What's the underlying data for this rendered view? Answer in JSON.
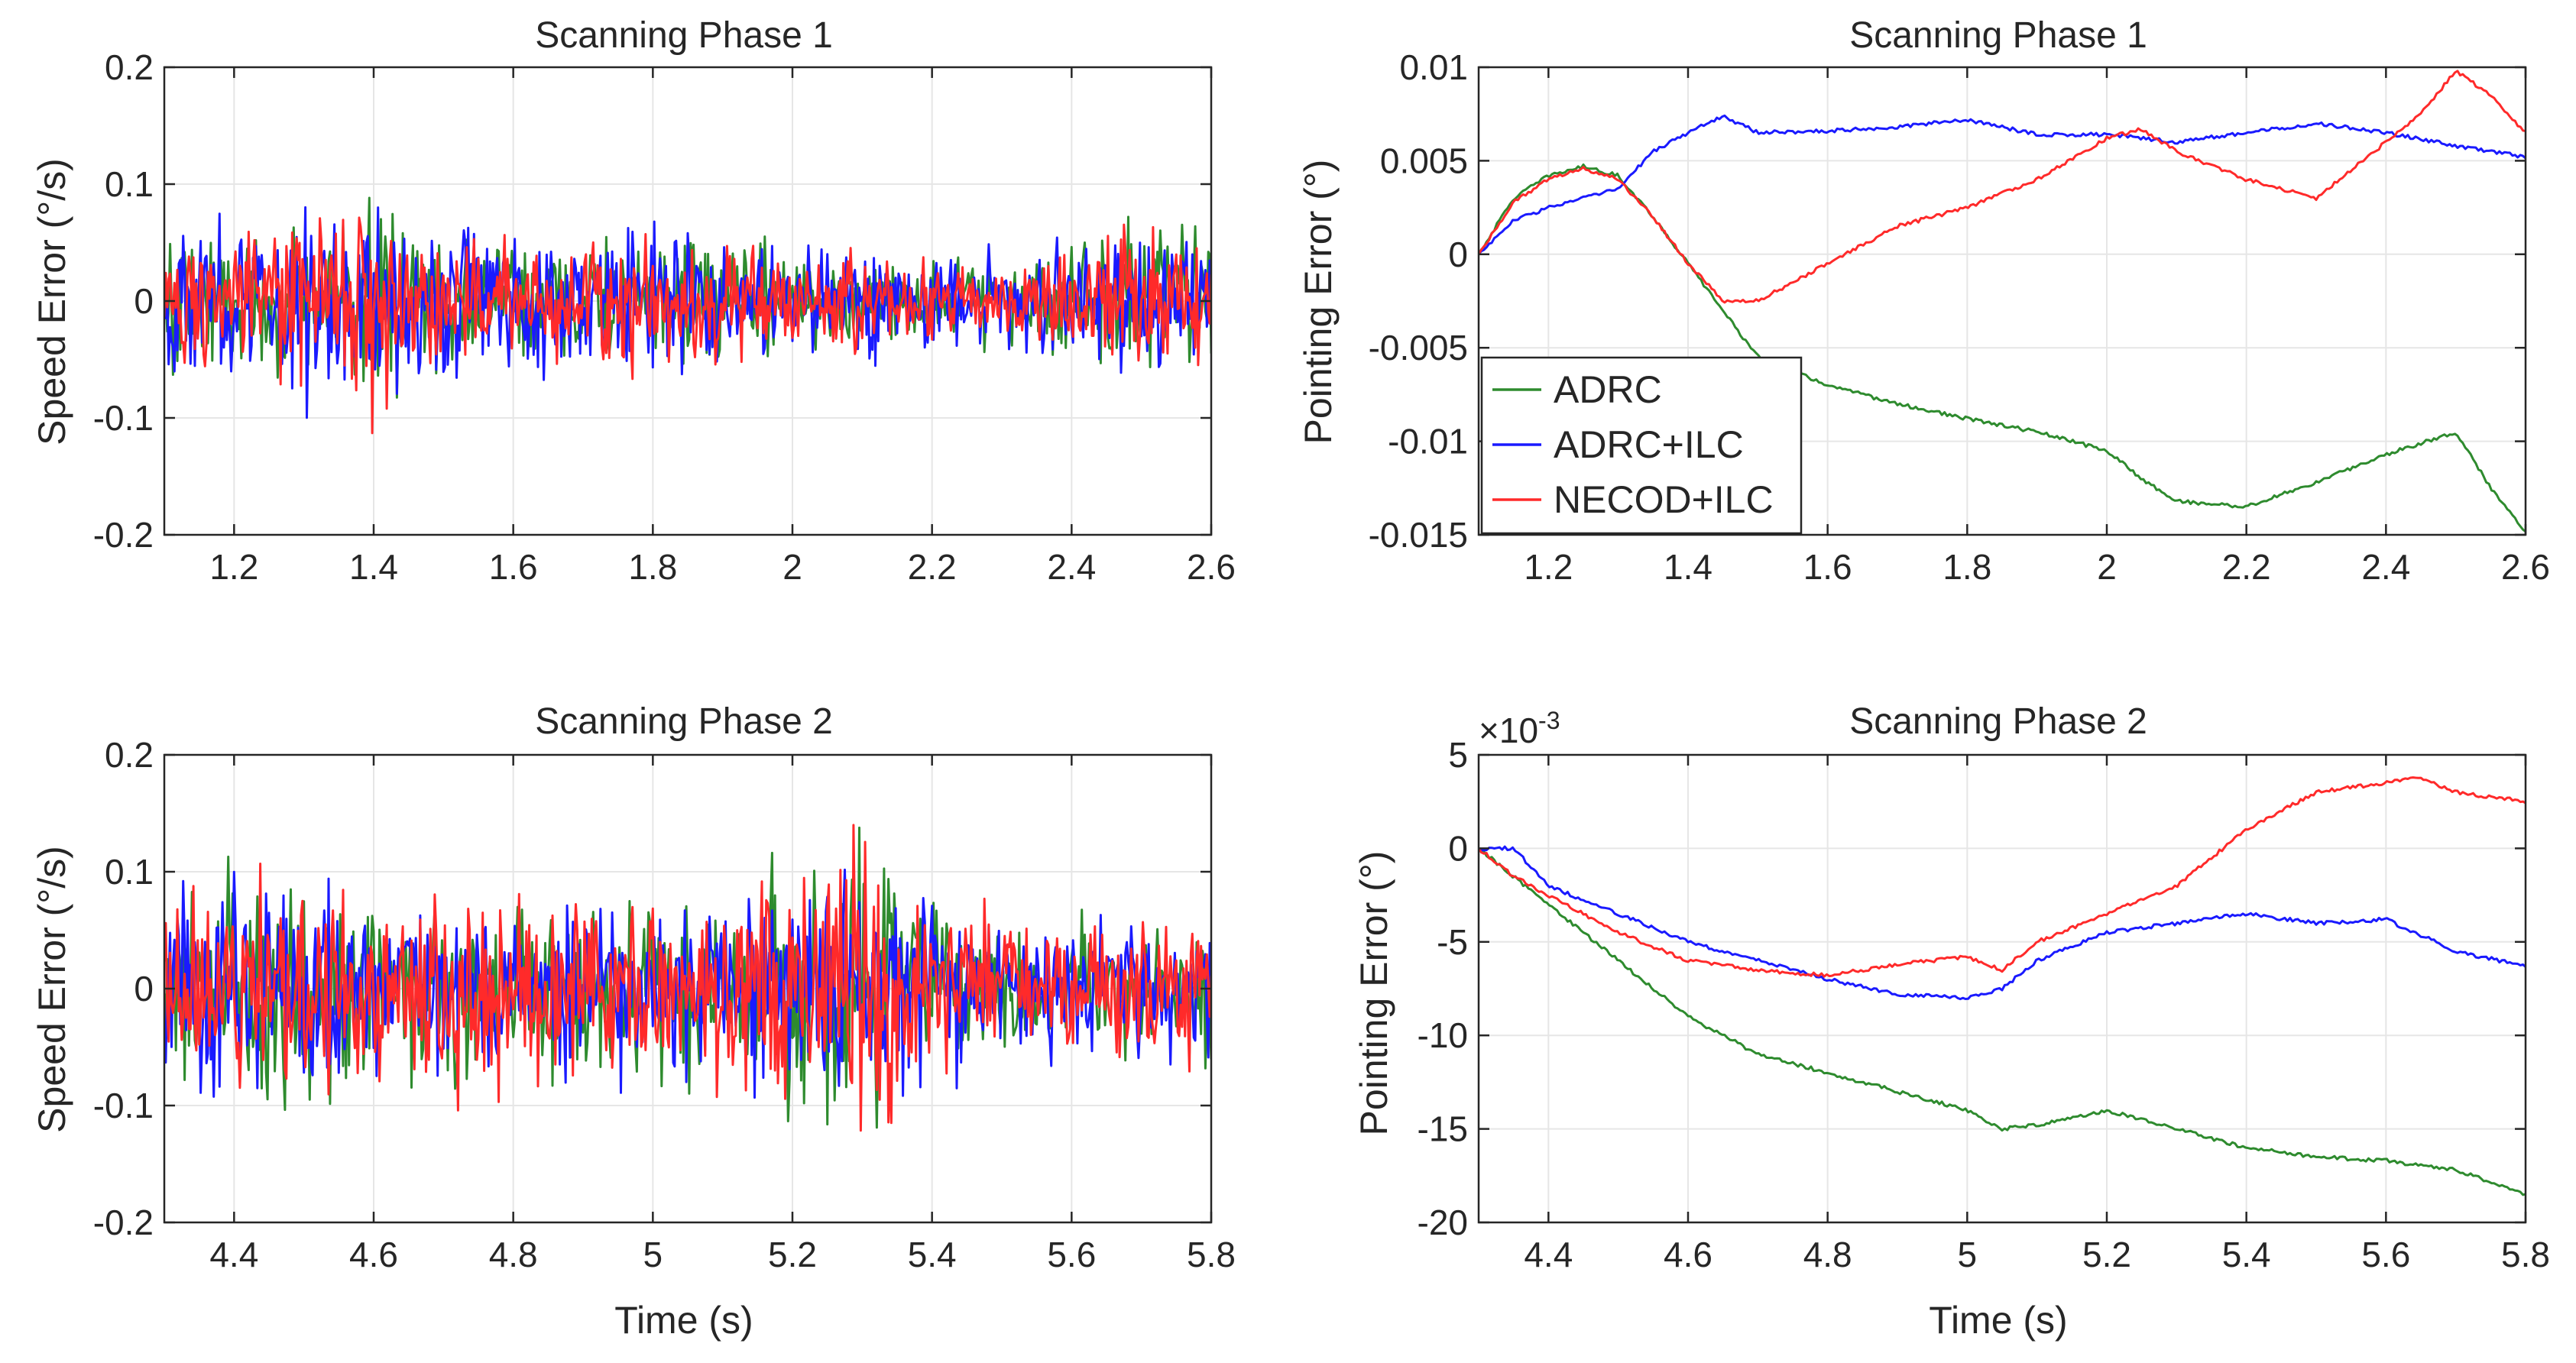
{
  "chart_data": [
    {
      "type": "line",
      "title": "Scanning Phase 1",
      "xlabel": "",
      "ylabel": "Speed Error (°/s)",
      "xlim": [
        1.1,
        2.6
      ],
      "ylim": [
        -0.2,
        0.2
      ],
      "xticks": [
        "1.2",
        "1.4",
        "1.6",
        "1.8",
        "2",
        "2.2",
        "2.4",
        "2.6"
      ],
      "yticks": [
        "-0.2",
        "-0.1",
        "0",
        "0.1",
        "0.2"
      ],
      "grid": true,
      "noise": true,
      "series": [
        {
          "name": "ADRC",
          "color": "#2e8b2e",
          "x": [
            1.1,
            1.2,
            1.3,
            1.4,
            1.5,
            1.6,
            1.7,
            1.8,
            1.9,
            2.0,
            2.1,
            2.2,
            2.3,
            2.4,
            2.5,
            2.6
          ],
          "amplitude": [
            0.09,
            0.08,
            0.08,
            0.12,
            0.08,
            0.07,
            0.07,
            0.07,
            0.07,
            0.06,
            0.06,
            0.05,
            0.05,
            0.06,
            0.1,
            0.09
          ]
        },
        {
          "name": "ADRC+ILC",
          "color": "#1a1aff",
          "x": [
            1.1,
            1.2,
            1.3,
            1.4,
            1.5,
            1.6,
            1.7,
            1.8,
            1.9,
            2.0,
            2.1,
            2.2,
            2.3,
            2.4,
            2.5,
            2.6
          ],
          "amplitude": [
            0.09,
            0.1,
            0.13,
            0.11,
            0.09,
            0.08,
            0.08,
            0.09,
            0.08,
            0.07,
            0.07,
            0.06,
            0.06,
            0.06,
            0.09,
            0.08
          ]
        },
        {
          "name": "NECOD+ILC",
          "color": "#ff2a2a",
          "x": [
            1.1,
            1.2,
            1.3,
            1.4,
            1.5,
            1.6,
            1.7,
            1.8,
            1.9,
            2.0,
            2.1,
            2.2,
            2.3,
            2.4,
            2.5,
            2.6
          ],
          "amplitude": [
            0.08,
            0.08,
            0.09,
            0.12,
            0.08,
            0.07,
            0.07,
            0.08,
            0.07,
            0.06,
            0.06,
            0.05,
            0.05,
            0.06,
            0.1,
            0.08
          ]
        }
      ]
    },
    {
      "type": "line",
      "title": "Scanning Phase 1",
      "xlabel": "",
      "ylabel": "Pointing Error (°)",
      "xlim": [
        1.1,
        2.6
      ],
      "ylim": [
        -0.015,
        0.01
      ],
      "xticks": [
        "1.2",
        "1.4",
        "1.6",
        "1.8",
        "2",
        "2.2",
        "2.4",
        "2.6"
      ],
      "yticks": [
        "-0.015",
        "-0.01",
        "-0.005",
        "0",
        "0.005",
        "0.01"
      ],
      "grid": true,
      "legend": {
        "position": "bottom-left",
        "entries": [
          "ADRC",
          "ADRC+ILC",
          "NECOD+ILC"
        ]
      },
      "series": [
        {
          "name": "ADRC",
          "color": "#2e8b2e",
          "x": [
            1.1,
            1.15,
            1.2,
            1.25,
            1.3,
            1.35,
            1.4,
            1.45,
            1.5,
            1.6,
            1.7,
            1.8,
            1.9,
            2.0,
            2.05,
            2.1,
            2.2,
            2.3,
            2.4,
            2.5,
            2.55,
            2.6
          ],
          "y": [
            0.0,
            0.003,
            0.0042,
            0.0047,
            0.0042,
            0.002,
            -0.0005,
            -0.003,
            -0.0055,
            -0.007,
            -0.008,
            -0.0088,
            -0.0095,
            -0.0105,
            -0.012,
            -0.0132,
            -0.0135,
            -0.0122,
            -0.0107,
            -0.0095,
            -0.0125,
            -0.0148
          ]
        },
        {
          "name": "ADRC+ILC",
          "color": "#1a1aff",
          "x": [
            1.1,
            1.15,
            1.2,
            1.25,
            1.3,
            1.35,
            1.4,
            1.45,
            1.5,
            1.6,
            1.7,
            1.8,
            1.9,
            2.0,
            2.1,
            2.2,
            2.3,
            2.4,
            2.5,
            2.6
          ],
          "y": [
            0.0,
            0.0018,
            0.0025,
            0.003,
            0.0035,
            0.0055,
            0.0065,
            0.0074,
            0.0065,
            0.0066,
            0.0068,
            0.0072,
            0.0064,
            0.0064,
            0.006,
            0.0065,
            0.007,
            0.0065,
            0.0058,
            0.0052
          ]
        },
        {
          "name": "NECOD+ILC",
          "color": "#ff2a2a",
          "x": [
            1.1,
            1.15,
            1.2,
            1.25,
            1.3,
            1.35,
            1.4,
            1.45,
            1.5,
            1.6,
            1.7,
            1.8,
            1.9,
            2.0,
            2.05,
            2.1,
            2.2,
            2.3,
            2.4,
            2.45,
            2.5,
            2.55,
            2.6
          ],
          "y": [
            0.0,
            0.0028,
            0.004,
            0.0046,
            0.004,
            0.002,
            -0.0005,
            -0.0025,
            -0.0025,
            -0.0005,
            0.0015,
            0.0025,
            0.004,
            0.0062,
            0.0067,
            0.0055,
            0.004,
            0.003,
            0.006,
            0.0075,
            0.0098,
            0.0085,
            0.0065
          ]
        }
      ]
    },
    {
      "type": "line",
      "title": "Scanning Phase 2",
      "xlabel": "Time (s)",
      "ylabel": "Speed Error (°/s)",
      "xlim": [
        4.3,
        5.8
      ],
      "ylim": [
        -0.2,
        0.2
      ],
      "xticks": [
        "4.4",
        "4.6",
        "4.8",
        "5",
        "5.2",
        "5.4",
        "5.6",
        "5.8"
      ],
      "yticks": [
        "-0.2",
        "-0.1",
        "0",
        "0.1",
        "0.2"
      ],
      "grid": true,
      "noise": true,
      "series": [
        {
          "name": "ADRC",
          "color": "#2e8b2e",
          "x": [
            4.3,
            4.4,
            4.5,
            4.6,
            4.7,
            4.8,
            4.9,
            5.0,
            5.1,
            5.2,
            5.3,
            5.4,
            5.5,
            5.6,
            5.7,
            5.8
          ],
          "amplitude": [
            0.1,
            0.12,
            0.14,
            0.1,
            0.1,
            0.11,
            0.11,
            0.1,
            0.1,
            0.14,
            0.16,
            0.11,
            0.08,
            0.07,
            0.08,
            0.09
          ]
        },
        {
          "name": "ADRC+ILC",
          "color": "#1a1aff",
          "x": [
            4.3,
            4.4,
            4.5,
            4.6,
            4.7,
            4.8,
            4.9,
            5.0,
            5.1,
            5.2,
            5.3,
            5.4,
            5.5,
            5.6,
            5.7,
            5.8
          ],
          "amplitude": [
            0.11,
            0.13,
            0.13,
            0.11,
            0.1,
            0.1,
            0.11,
            0.1,
            0.12,
            0.18,
            0.14,
            0.11,
            0.08,
            0.07,
            0.09,
            0.09
          ]
        },
        {
          "name": "NECOD+ILC",
          "color": "#ff2a2a",
          "x": [
            4.3,
            4.4,
            4.5,
            4.6,
            4.7,
            4.8,
            4.9,
            5.0,
            5.1,
            5.2,
            5.3,
            5.4,
            5.5,
            5.6,
            5.7,
            5.8
          ],
          "amplitude": [
            0.1,
            0.12,
            0.12,
            0.1,
            0.12,
            0.12,
            0.11,
            0.1,
            0.11,
            0.15,
            0.18,
            0.12,
            0.08,
            0.07,
            0.09,
            0.1
          ]
        }
      ]
    },
    {
      "type": "line",
      "title": "Scanning Phase 2",
      "xlabel": "Time (s)",
      "ylabel": "Pointing Error (°)",
      "exponent_label": "×10",
      "exponent_power": "-3",
      "xlim": [
        4.3,
        5.8
      ],
      "ylim": [
        -20,
        5
      ],
      "xticks": [
        "4.4",
        "4.6",
        "4.8",
        "5",
        "5.2",
        "5.4",
        "5.6",
        "5.8"
      ],
      "yticks": [
        "-20",
        "-15",
        "-10",
        "-5",
        "0",
        "5"
      ],
      "grid": true,
      "series": [
        {
          "name": "ADRC",
          "color": "#2e8b2e",
          "x": [
            4.3,
            4.35,
            4.4,
            4.5,
            4.6,
            4.7,
            4.8,
            4.9,
            5.0,
            5.05,
            5.1,
            5.2,
            5.3,
            5.4,
            5.5,
            5.6,
            5.7,
            5.8
          ],
          "y": [
            0,
            -1.5,
            -3,
            -6,
            -9,
            -11,
            -12,
            -13,
            -14,
            -15,
            -14.8,
            -14,
            -15,
            -16,
            -16.5,
            -16.7,
            -17.2,
            -18.5
          ]
        },
        {
          "name": "ADRC+ILC",
          "color": "#1a1aff",
          "x": [
            4.3,
            4.35,
            4.4,
            4.5,
            4.6,
            4.7,
            4.8,
            4.9,
            5.0,
            5.05,
            5.1,
            5.2,
            5.3,
            5.4,
            5.5,
            5.6,
            5.7,
            5.8
          ],
          "y": [
            0,
            0,
            -2,
            -3.5,
            -5,
            -6,
            -7,
            -7.8,
            -8,
            -7.5,
            -6,
            -4.5,
            -4,
            -3.5,
            -4,
            -3.8,
            -5.5,
            -6.3
          ]
        },
        {
          "name": "NECOD+ILC",
          "color": "#ff2a2a",
          "x": [
            4.3,
            4.35,
            4.4,
            4.5,
            4.6,
            4.7,
            4.8,
            4.9,
            5.0,
            5.05,
            5.1,
            5.2,
            5.3,
            5.4,
            5.5,
            5.6,
            5.65,
            5.7,
            5.8
          ],
          "y": [
            0,
            -1.5,
            -2.5,
            -4.5,
            -6,
            -6.5,
            -6.8,
            -6.2,
            -5.8,
            -6.5,
            -5,
            -3.5,
            -2,
            1,
            3,
            3.5,
            3.8,
            3,
            2.5
          ]
        }
      ]
    }
  ]
}
